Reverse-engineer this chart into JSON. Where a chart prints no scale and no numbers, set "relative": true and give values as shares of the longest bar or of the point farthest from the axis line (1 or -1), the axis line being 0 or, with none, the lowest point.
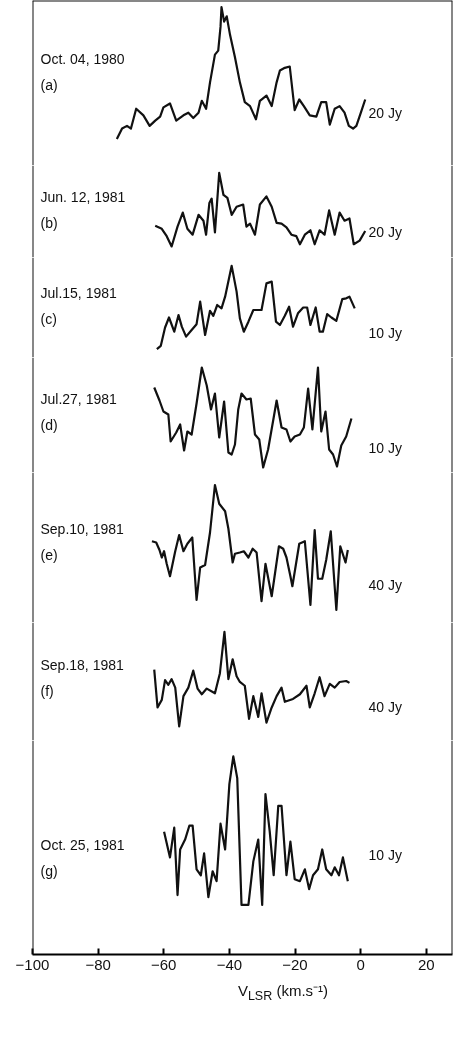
{
  "chart_data": [
    {
      "type": "line",
      "relative": true,
      "title": "Oct. 04, 1980",
      "subtitle": "(a)",
      "annotations": [
        "20 Jy"
      ],
      "xlim": [
        -100,
        28
      ],
      "tick_labels": false,
      "line_style": "solid",
      "marker": "none",
      "grid": false,
      "series": [
        {
          "color": "#111111",
          "x": [
            -74.3,
            -72.7,
            -71.2,
            -70.0,
            -68.4,
            -66.2,
            -64.3,
            -62.6,
            -61.1,
            -60.1,
            -58.1,
            -56.2,
            -54.0,
            -52.5,
            -51.0,
            -49.4,
            -48.4,
            -47.1,
            -45.9,
            -44.4,
            -43.4,
            -42.7,
            -42.4,
            -41.6,
            -40.8,
            -39.8,
            -38.3,
            -36.8,
            -35.3,
            -33.7,
            -31.9,
            -30.7,
            -28.7,
            -27.1,
            -25.6,
            -24.6,
            -23.1,
            -21.6,
            -20.1,
            -18.7,
            -17.3,
            -15.5,
            -13.5,
            -12.0,
            -10.5,
            -9.4,
            -7.9,
            -6.4,
            -4.9,
            -3.6,
            -2.3,
            -1.3,
            0.2,
            1.4
          ],
          "values": [
            0,
            0.08,
            0.1,
            0.08,
            0.23,
            0.18,
            0.1,
            0.14,
            0.17,
            0.24,
            0.27,
            0.14,
            0.18,
            0.2,
            0.16,
            0.2,
            0.29,
            0.23,
            0.43,
            0.64,
            0.67,
            0.85,
            1,
            0.89,
            0.93,
            0.79,
            0.62,
            0.43,
            0.28,
            0.25,
            0.15,
            0.29,
            0.33,
            0.25,
            0.43,
            0.52,
            0.54,
            0.55,
            0.22,
            0.3,
            0.25,
            0.18,
            0.17,
            0.28,
            0.28,
            0.11,
            0.23,
            0.25,
            0.2,
            0.1,
            0.08,
            0.1,
            0.21,
            0.3
          ]
        }
      ]
    },
    {
      "type": "line",
      "relative": true,
      "title": "Jun. 12, 1981",
      "subtitle": "(b)",
      "annotations": [
        "20 Jy"
      ],
      "xlim": [
        -100,
        28
      ],
      "tick_labels": false,
      "line_style": "solid",
      "marker": "none",
      "grid": false,
      "series": [
        {
          "color": "#111111",
          "x": [
            -62.6,
            -60.6,
            -59.1,
            -57.6,
            -55.8,
            -54.2,
            -52.8,
            -51.2,
            -49.4,
            -47.9,
            -47.1,
            -46.1,
            -45.4,
            -44.4,
            -43.1,
            -41.8,
            -40.6,
            -39.3,
            -37.8,
            -35.8,
            -34.8,
            -33.7,
            -32.2,
            -30.7,
            -28.7,
            -27.1,
            -25.6,
            -24.1,
            -22.6,
            -21.1,
            -19.6,
            -18.5,
            -17.0,
            -15.3,
            -14.0,
            -12.5,
            -11.0,
            -9.6,
            -7.9,
            -6.4,
            -4.9,
            -3.4,
            -2.1,
            -0.3,
            1.4
          ],
          "values": [
            0.28,
            0.24,
            0.14,
            0,
            0.27,
            0.46,
            0.24,
            0.16,
            0.43,
            0.35,
            0.16,
            0.59,
            0.65,
            0.19,
            1,
            0.7,
            0.66,
            0.43,
            0.54,
            0.57,
            0.27,
            0.31,
            0.16,
            0.57,
            0.68,
            0.54,
            0.32,
            0.31,
            0.26,
            0.16,
            0.14,
            0.03,
            0.16,
            0.22,
            0.03,
            0.22,
            0.16,
            0.49,
            0.16,
            0.46,
            0.35,
            0.38,
            0.03,
            0.08,
            0.21
          ]
        }
      ]
    },
    {
      "type": "line",
      "relative": true,
      "title": "Jul.15, 1981",
      "subtitle": "(c)",
      "annotations": [
        "10 Jy"
      ],
      "xlim": [
        -100,
        28
      ],
      "tick_labels": false,
      "line_style": "solid",
      "marker": "none",
      "grid": false,
      "series": [
        {
          "color": "#111111",
          "x": [
            -62.1,
            -60.9,
            -59.6,
            -58.4,
            -56.8,
            -55.5,
            -54.5,
            -53.2,
            -51.5,
            -50.0,
            -48.9,
            -47.4,
            -45.9,
            -44.9,
            -43.7,
            -42.4,
            -41.3,
            -39.3,
            -37.8,
            -36.8,
            -35.6,
            -34.2,
            -32.7,
            -30.2,
            -28.7,
            -27.1,
            -25.8,
            -24.6,
            -23.1,
            -21.8,
            -20.6,
            -19.1,
            -17.5,
            -16.3,
            -15.3,
            -13.7,
            -12.5,
            -11.5,
            -10.2,
            -8.9,
            -7.4,
            -5.6,
            -4.4,
            -3.4,
            -1.8
          ],
          "values": [
            0,
            0.04,
            0.26,
            0.38,
            0.21,
            0.41,
            0.27,
            0.15,
            0.23,
            0.3,
            0.57,
            0.17,
            0.46,
            0.4,
            0.53,
            0.49,
            0.63,
            1,
            0.69,
            0.37,
            0.21,
            0.33,
            0.47,
            0.47,
            0.79,
            0.81,
            0.33,
            0.29,
            0.4,
            0.51,
            0.27,
            0.43,
            0.5,
            0.5,
            0.29,
            0.5,
            0.21,
            0.21,
            0.42,
            0.38,
            0.34,
            0.6,
            0.61,
            0.63,
            0.49
          ]
        }
      ]
    },
    {
      "type": "line",
      "relative": true,
      "title": "Jul.27, 1981",
      "subtitle": "(d)",
      "annotations": [
        "10 Jy"
      ],
      "xlim": [
        -100,
        28
      ],
      "tick_labels": false,
      "line_style": "solid",
      "marker": "none",
      "grid": false,
      "series": [
        {
          "color": "#111111",
          "x": [
            -62.9,
            -61.3,
            -60.1,
            -58.6,
            -57.9,
            -56.2,
            -55.0,
            -53.8,
            -52.8,
            -51.5,
            -50.0,
            -48.4,
            -46.9,
            -45.6,
            -44.4,
            -43.1,
            -41.6,
            -40.3,
            -39.3,
            -38.3,
            -37.3,
            -36.3,
            -34.8,
            -33.5,
            -32.2,
            -30.9,
            -29.7,
            -28.2,
            -26.6,
            -25.6,
            -24.1,
            -22.6,
            -21.4,
            -20.1,
            -18.5,
            -17.3,
            -16.0,
            -14.7,
            -13.0,
            -12.0,
            -10.7,
            -9.6,
            -8.4,
            -7.2,
            -5.9,
            -4.4,
            -2.8
          ],
          "values": [
            0.8,
            0.67,
            0.56,
            0.53,
            0.26,
            0.35,
            0.43,
            0.17,
            0.36,
            0.33,
            0.64,
            1,
            0.82,
            0.58,
            0.74,
            0.3,
            0.66,
            0.15,
            0.13,
            0.23,
            0.58,
            0.74,
            0.68,
            0.69,
            0.33,
            0.28,
            0,
            0.18,
            0.48,
            0.67,
            0.4,
            0.38,
            0.26,
            0.31,
            0.33,
            0.4,
            0.79,
            0.38,
            1,
            0.36,
            0.56,
            0.18,
            0.13,
            0.01,
            0.22,
            0.31,
            0.49
          ]
        }
      ]
    },
    {
      "type": "line",
      "relative": true,
      "title": "Sep.10, 1981",
      "subtitle": "(e)",
      "annotations": [
        "40 Jy"
      ],
      "xlim": [
        -100,
        28
      ],
      "tick_labels": false,
      "line_style": "solid",
      "marker": "none",
      "grid": false,
      "series": [
        {
          "color": "#111111",
          "x": [
            -63.6,
            -62.3,
            -61.3,
            -60.6,
            -59.9,
            -59.1,
            -58.1,
            -56.5,
            -55.3,
            -54.0,
            -52.8,
            -51.3,
            -50.0,
            -48.9,
            -47.4,
            -45.9,
            -44.4,
            -43.1,
            -41.3,
            -40.3,
            -39.0,
            -38.3,
            -36.8,
            -35.6,
            -34.2,
            -32.9,
            -31.7,
            -30.2,
            -29.0,
            -27.1,
            -24.9,
            -23.6,
            -22.6,
            -21.4,
            -20.8,
            -18.7,
            -17.0,
            -15.3,
            -14.0,
            -13.0,
            -11.7,
            -10.5,
            -9.1,
            -7.4,
            -6.2,
            -4.6,
            -3.9
          ],
          "values": [
            0.55,
            0.54,
            0.48,
            0.42,
            0.47,
            0.37,
            0.27,
            0.47,
            0.6,
            0.47,
            0.53,
            0.58,
            0.08,
            0.34,
            0.36,
            0.62,
            1,
            0.85,
            0.79,
            0.65,
            0.38,
            0.45,
            0.46,
            0.47,
            0.42,
            0.49,
            0.46,
            0.07,
            0.37,
            0.11,
            0.51,
            0.49,
            0.42,
            0.27,
            0.19,
            0.53,
            0.55,
            0.04,
            0.64,
            0.25,
            0.25,
            0.4,
            0.63,
            0,
            0.51,
            0.38,
            0.48
          ]
        }
      ]
    },
    {
      "type": "line",
      "relative": true,
      "title": "Sep.18, 1981",
      "subtitle": "(f)",
      "annotations": [
        "40 Jy"
      ],
      "xlim": [
        -100,
        28
      ],
      "tick_labels": false,
      "line_style": "solid",
      "marker": "none",
      "grid": false,
      "series": [
        {
          "color": "#111111",
          "x": [
            -62.9,
            -61.9,
            -60.6,
            -59.6,
            -58.6,
            -57.6,
            -56.5,
            -55.3,
            -54.0,
            -52.5,
            -51.0,
            -49.7,
            -48.4,
            -46.9,
            -44.4,
            -42.9,
            -41.5,
            -40.3,
            -39.0,
            -37.8,
            -36.8,
            -35.3,
            -34.0,
            -32.7,
            -31.2,
            -30.2,
            -28.7,
            -27.1,
            -25.6,
            -24.1,
            -23.1,
            -20.6,
            -18.5,
            -16.5,
            -15.5,
            -14.0,
            -12.5,
            -11.0,
            -9.4,
            -7.9,
            -6.4,
            -4.4,
            -3.4
          ],
          "values": [
            0.6,
            0.2,
            0.28,
            0.49,
            0.44,
            0.5,
            0.41,
            0,
            0.32,
            0.41,
            0.59,
            0.4,
            0.34,
            0.4,
            0.35,
            0.56,
            1,
            0.5,
            0.71,
            0.53,
            0.47,
            0.43,
            0.08,
            0.32,
            0.1,
            0.35,
            0.04,
            0.2,
            0.32,
            0.41,
            0.26,
            0.29,
            0.34,
            0.43,
            0.2,
            0.35,
            0.52,
            0.32,
            0.45,
            0.41,
            0.47,
            0.48,
            0.46
          ]
        }
      ]
    },
    {
      "type": "line",
      "relative": true,
      "title": "Oct. 25, 1981",
      "subtitle": "(g)",
      "annotations": [
        "10 Jy"
      ],
      "xlim": [
        -100,
        28
      ],
      "xticks": [
        -100,
        -80,
        -60,
        -40,
        -20,
        0,
        20
      ],
      "tick_labels": "x",
      "xlabel": "V$_{LSR}$ (km.s⁻¹)",
      "line_style": "solid",
      "marker": "none",
      "grid": false,
      "series": [
        {
          "color": "#111111",
          "x": [
            -59.9,
            -58.1,
            -56.8,
            -55.8,
            -55.0,
            -53.5,
            -52.2,
            -51.2,
            -50.0,
            -48.7,
            -47.7,
            -46.4,
            -45.1,
            -43.9,
            -42.7,
            -41.3,
            -40.0,
            -38.8,
            -37.6,
            -36.3,
            -34.2,
            -32.7,
            -31.2,
            -30.0,
            -29.0,
            -27.7,
            -26.5,
            -25.1,
            -24.1,
            -22.6,
            -21.4,
            -20.1,
            -18.5,
            -17.0,
            -15.7,
            -14.5,
            -13.0,
            -11.7,
            -10.5,
            -8.9,
            -7.9,
            -6.6,
            -5.4,
            -3.9
          ],
          "values": [
            0.62,
            0.49,
            0.64,
            0.3,
            0.53,
            0.58,
            0.65,
            0.65,
            0.43,
            0.4,
            0.51,
            0.29,
            0.42,
            0.37,
            0.66,
            0.53,
            0.86,
            1,
            0.89,
            0.25,
            0.25,
            0.47,
            0.58,
            0.25,
            0.81,
            0.62,
            0.4,
            0.75,
            0.75,
            0.4,
            0.57,
            0.38,
            0.37,
            0.43,
            0.33,
            0.4,
            0.43,
            0.53,
            0.43,
            0.4,
            0.44,
            0.4,
            0.49,
            0.37
          ]
        }
      ]
    }
  ]
}
